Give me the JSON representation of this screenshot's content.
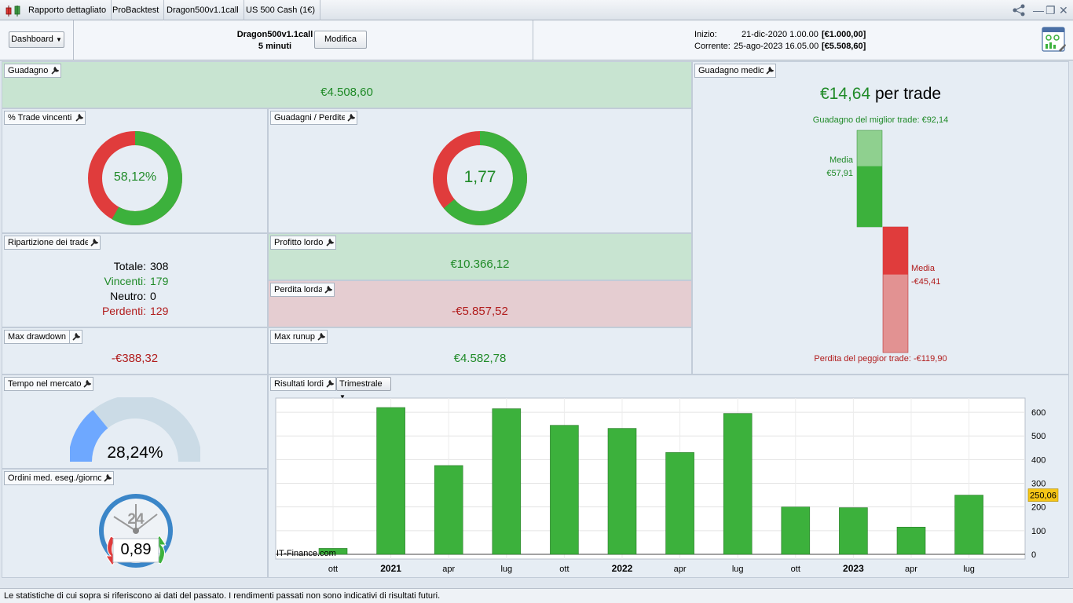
{
  "tabs": [
    "Rapporto dettagliato",
    "ProBacktest",
    "Dragon500v1.1call",
    "US 500 Cash (1€)"
  ],
  "header": {
    "dashboard_label": "Dashboard",
    "strategy_name": "Dragon500v1.1call",
    "timeframe": "5 minuti",
    "modify_label": "Modifica",
    "start_label": "Inizio:",
    "start_date": "21-dic-2020 1.00.00",
    "start_value": "[€1.000,00]",
    "current_label": "Corrente:",
    "current_date": "25-ago-2023 16.05.00",
    "current_value": "[€5.508,60]"
  },
  "guadagno": {
    "title": "Guadagno",
    "value": "€4.508,60"
  },
  "win_pct": {
    "title": "% Trade vincenti",
    "value": "58,12%",
    "fraction": 0.5812
  },
  "gain_loss": {
    "title": "Guadagni / Perdite",
    "value": "1,77",
    "fraction": 0.639
  },
  "avg_gain": {
    "title": "Guadagno medio",
    "amount": "€14,64",
    "suffix": " per trade",
    "best_label": "Guadagno del miglior trade: €92,14",
    "worst_label": "Perdita del peggior trade: -€119,90",
    "media_label": "Media",
    "avg_win": "€57,91",
    "avg_loss": "-€45,41",
    "best_value": 92.14,
    "avg_win_value": 57.91,
    "avg_loss_value": 45.41,
    "worst_value": 119.9
  },
  "breakdown": {
    "title": "Ripartizione dei trade",
    "total_label": "Totale:",
    "total": "308",
    "win_label": "Vincenti:",
    "win": "179",
    "neutral_label": "Neutro:",
    "neutral": "0",
    "loss_label": "Perdenti:",
    "loss": "129"
  },
  "gross_profit": {
    "title": "Profitto lordo",
    "value": "€10.366,12"
  },
  "gross_loss": {
    "title": "Perdita lorda",
    "value": "-€5.857,52"
  },
  "max_drawdown": {
    "title": "Max drawdown",
    "value": "-€388,32"
  },
  "max_runup": {
    "title": "Max runup",
    "value": "€4.582,78"
  },
  "time_in_market": {
    "title": "Tempo nel mercato",
    "value": "28,24%",
    "fraction": 0.2824
  },
  "orders": {
    "title": "Ordini med. eseg./giorno",
    "value": "0,89",
    "clock_label": "24"
  },
  "results": {
    "title": "Risultati lordi",
    "period_label": "Trimestrale",
    "watermark": "IT-Finance.com"
  },
  "chart_data": {
    "type": "bar",
    "categories": [
      "ott",
      "2021",
      "apr",
      "lug",
      "ott",
      "2022",
      "apr",
      "lug",
      "ott",
      "2023",
      "apr",
      "lug"
    ],
    "bold_categories": [
      "2021",
      "2022",
      "2023"
    ],
    "values": [
      25,
      620,
      375,
      615,
      545,
      532,
      430,
      595,
      200,
      197,
      115,
      250.06
    ],
    "y_ticks": [
      0,
      100,
      200,
      300,
      400,
      500,
      600
    ],
    "ylim": [
      -20,
      660
    ],
    "last_value_label": "250,06",
    "colors": {
      "bar": "#3cb13c",
      "marker": "#f5c518"
    }
  },
  "footer": "Le statistiche di cui sopra si riferiscono ai dati del passato. I rendimenti passati non sono indicativi di risultati futuri."
}
